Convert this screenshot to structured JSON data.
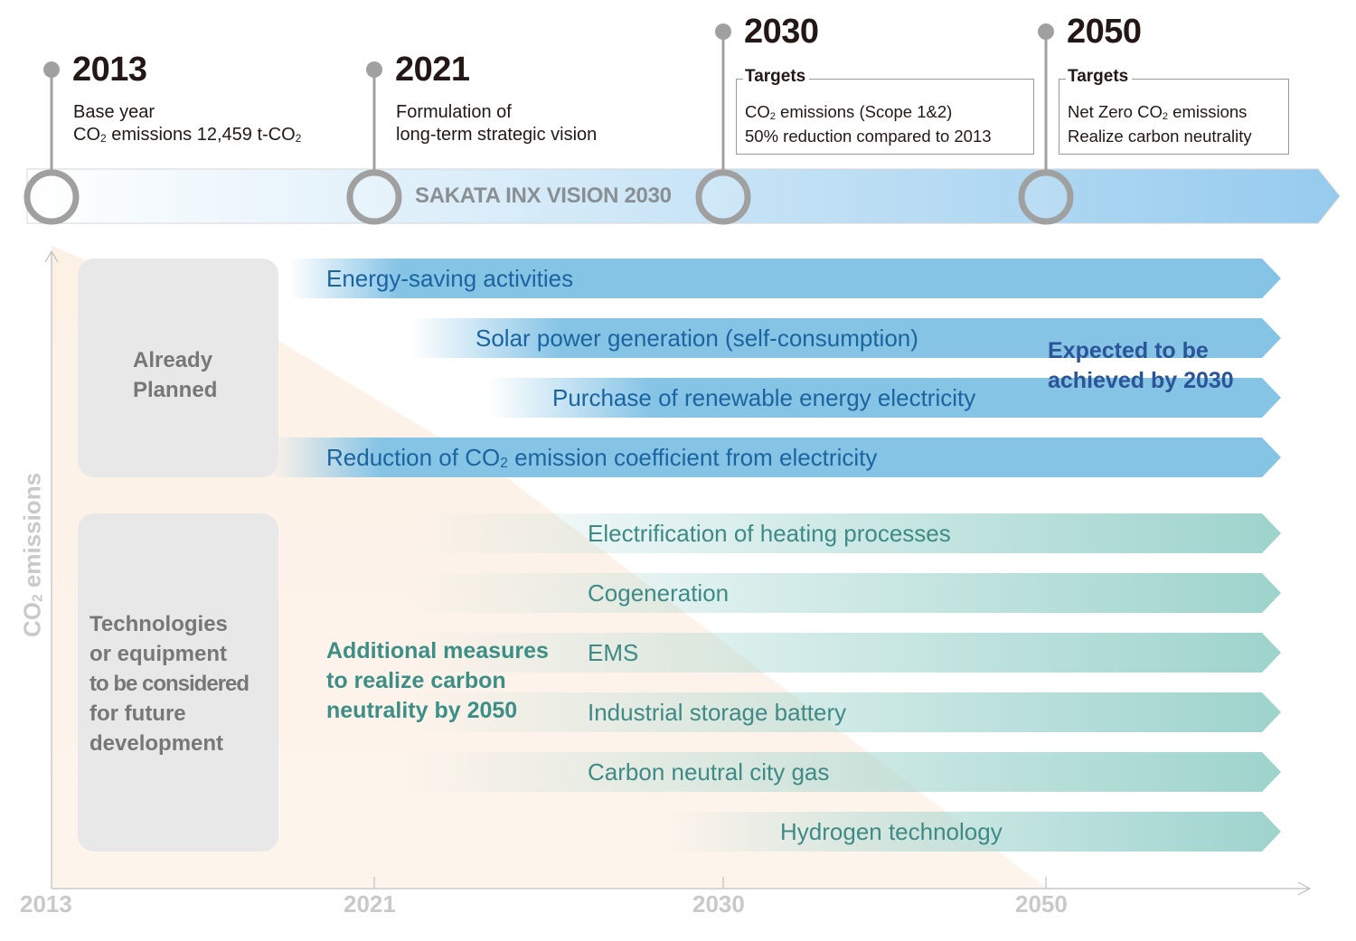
{
  "milestones": [
    {
      "year": "2013",
      "line1": "Base year",
      "line2_a": "CO",
      "line2_sub": "2",
      "line2_b": " emissions 12,459 t-CO",
      "line2_sub2": "2"
    },
    {
      "year": "2021",
      "line1": "Formulation of",
      "line2": "long-term strategic vision"
    },
    {
      "year": "2030",
      "box_title": "Targets",
      "box_line1_a": "CO",
      "box_line1_sub": "2",
      "box_line1_b": " emissions (Scope 1&2)",
      "box_line2": "50% reduction compared to 2013"
    },
    {
      "year": "2050",
      "box_title": "Targets",
      "box_line1_a": "Net Zero CO",
      "box_line1_sub": "2",
      "box_line1_b": " emissions",
      "box_line2": "Realize carbon neutrality"
    }
  ],
  "vision_label": "SAKATA INX VISION 2030",
  "categories": {
    "planned": {
      "line1": "Already",
      "line2": "Planned"
    },
    "future": {
      "lines": [
        "Technologies",
        "or equipment",
        "to be considered",
        "for future",
        "development"
      ]
    }
  },
  "planned_bars": [
    {
      "label": "Energy-saving activities"
    },
    {
      "label": "Solar power generation (self-consumption)"
    },
    {
      "label": "Purchase of renewable energy electricity"
    },
    {
      "label_a": "Reduction of CO",
      "label_sub": "2",
      "label_b": " emission coefficient from electricity"
    }
  ],
  "future_bars": [
    {
      "label": "Electrification of heating processes"
    },
    {
      "label": "Cogeneration"
    },
    {
      "label": "EMS"
    },
    {
      "label": "Industrial storage battery"
    },
    {
      "label": "Carbon neutral city gas"
    },
    {
      "label": "Hydrogen technology"
    }
  ],
  "notes": {
    "expected": {
      "line1": "Expected to be",
      "line2": "achieved by 2030"
    },
    "additional": {
      "line1": "Additional measures",
      "line2": "to realize carbon",
      "line3": "neutrality by 2050"
    }
  },
  "axis": {
    "y_label_a": "CO",
    "y_label_sub": "2",
    "y_label_b": " emissions",
    "x_ticks": [
      "2013",
      "2021",
      "2030",
      "2050"
    ]
  },
  "colors": {
    "planned_bar": "#86c4e6",
    "future_bar": "#9dd3cc",
    "timeline_arrow": "#96cbee",
    "milestone_circle": "#a0a0a0",
    "expected_note": "#2b5597",
    "additional_note": "#3b8f86",
    "emissions_area": "#fdf1e6"
  }
}
